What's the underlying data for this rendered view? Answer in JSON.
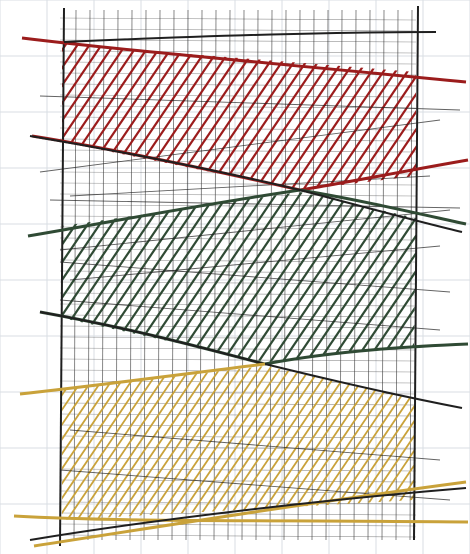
{
  "image": {
    "description_text": "",
    "background": "#ffffff"
  },
  "colors": {
    "paper_grid": "#d9dde3",
    "ink": "#1f1f1f",
    "grid_ink": "#3a3a3a",
    "red": "#9b1c1c",
    "green": "#2f4a34",
    "gold": "#c9a23a"
  }
}
